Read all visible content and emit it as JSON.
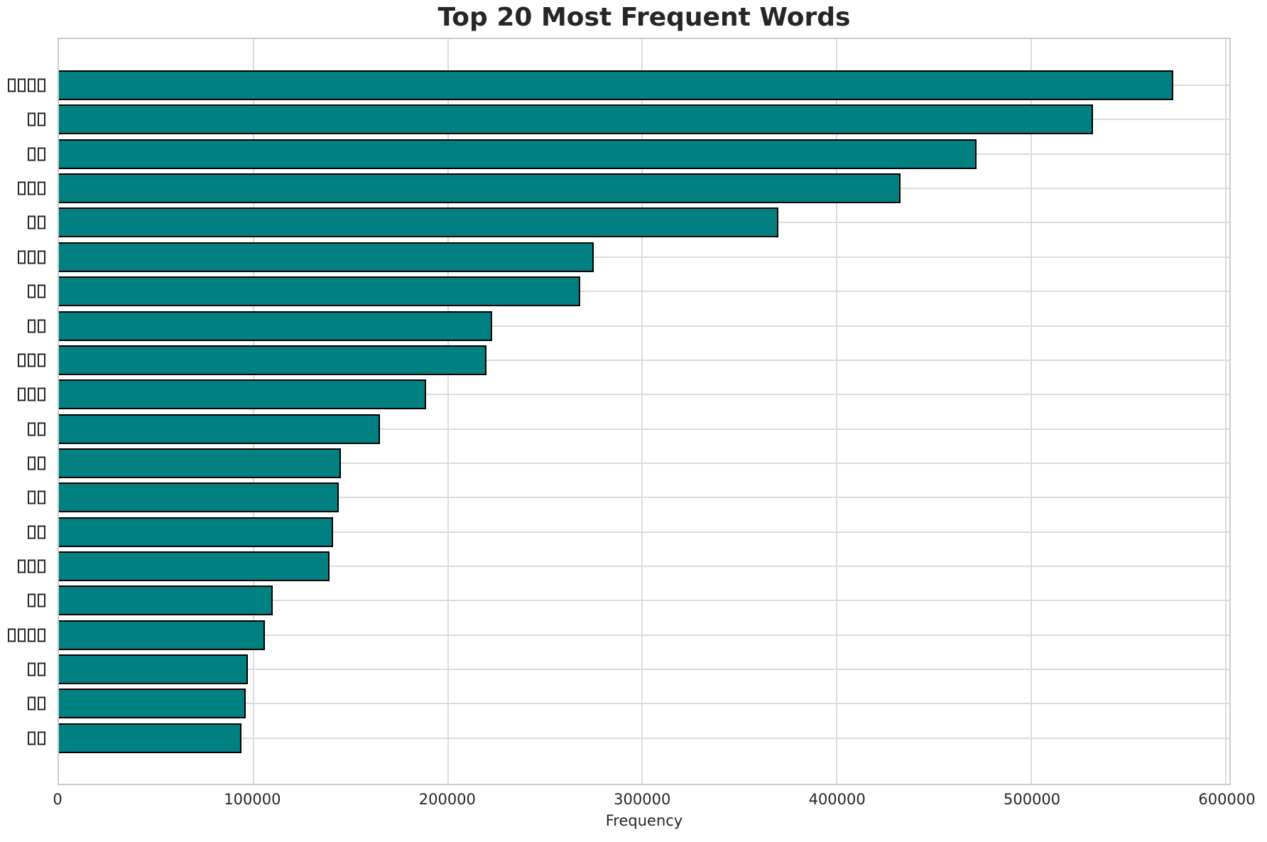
{
  "chart_data": {
    "type": "bar",
    "orientation": "horizontal",
    "title": "Top 20 Most Frequent Words",
    "xlabel": "Frequency",
    "ylabel": "",
    "categories": [
      "□□□□",
      "□□",
      "□□",
      "□□□",
      "□□",
      "□□□",
      "□□",
      "□□",
      "□□□",
      "□□□",
      "□□",
      "□□",
      "□□",
      "□□",
      "□□□",
      "□□",
      "□□□□",
      "□□",
      "□□",
      "□□"
    ],
    "categories_note": "y-axis tick labels are CJK words rendered as missing-glyph (tofu) boxes in the source image; each □ is one box glyph",
    "values": [
      573000,
      532000,
      472000,
      433000,
      370000,
      275000,
      268000,
      223000,
      220000,
      189000,
      165000,
      145000,
      144000,
      141000,
      139000,
      110000,
      106000,
      97000,
      96000,
      94000
    ],
    "xlim": [
      0,
      602000
    ],
    "xticks": [
      0,
      100000,
      200000,
      300000,
      400000,
      500000,
      600000
    ],
    "xtick_labels": [
      "0",
      "100000",
      "200000",
      "300000",
      "400000",
      "500000",
      "600000"
    ],
    "grid": true,
    "legend": "none",
    "colors": {
      "bar": "#008080",
      "bar_edge": "#000000",
      "grid": "#dcdcdc",
      "spine": "#cccccc",
      "text": "#262626",
      "background": "#ffffff"
    }
  }
}
